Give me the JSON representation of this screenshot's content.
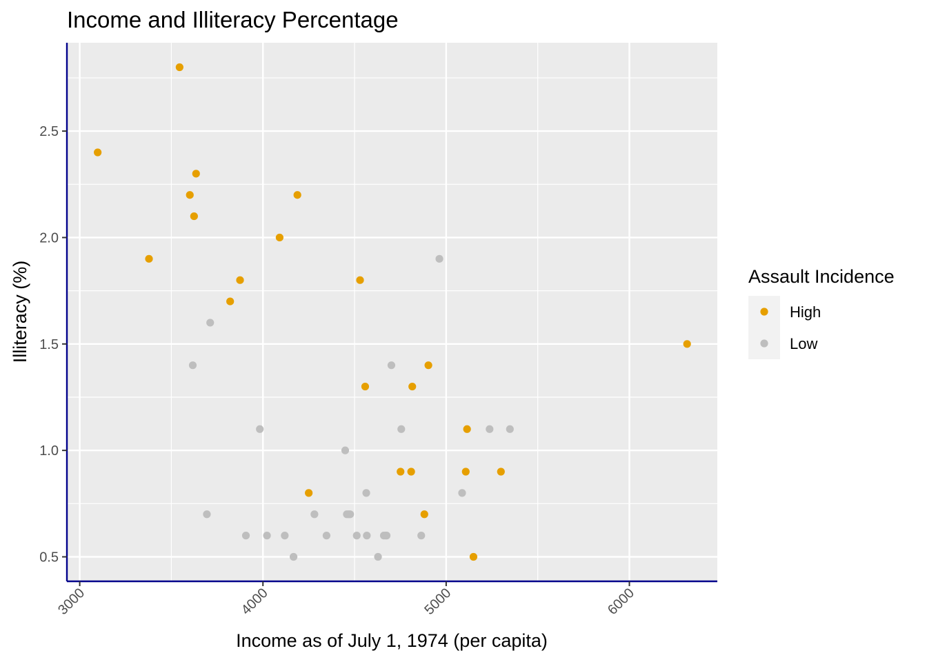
{
  "chart_data": {
    "type": "scatter",
    "title": "Income and Illiteracy Percentage",
    "xlabel": "Income as of July 1, 1974 (per capita)",
    "ylabel": "Illiteracy (%)",
    "xlim": [
      2930,
      6480
    ],
    "ylim": [
      0.385,
      2.915
    ],
    "x_ticks": [
      3000,
      4000,
      5000,
      6000
    ],
    "y_ticks": [
      0.5,
      1.0,
      1.5,
      2.0,
      2.5
    ],
    "y_tick_labels": [
      "0.5",
      "1.0",
      "1.5",
      "2.0",
      "2.5"
    ],
    "grid": true,
    "legend": {
      "title": "Assault Incidence",
      "position": "right"
    },
    "series": [
      {
        "name": "High",
        "color": "#E69F00",
        "points": [
          {
            "x": 3098,
            "y": 2.4
          },
          {
            "x": 3378,
            "y": 1.9
          },
          {
            "x": 3545,
            "y": 2.8
          },
          {
            "x": 3601,
            "y": 2.2
          },
          {
            "x": 3624,
            "y": 2.1
          },
          {
            "x": 3635,
            "y": 2.3
          },
          {
            "x": 3821,
            "y": 1.7
          },
          {
            "x": 3875,
            "y": 1.8
          },
          {
            "x": 4091,
            "y": 2.0
          },
          {
            "x": 4188,
            "y": 2.2
          },
          {
            "x": 4250,
            "y": 0.8
          },
          {
            "x": 4530,
            "y": 1.8
          },
          {
            "x": 4558,
            "y": 1.3
          },
          {
            "x": 4751,
            "y": 0.9
          },
          {
            "x": 4809,
            "y": 0.9
          },
          {
            "x": 4815,
            "y": 1.3
          },
          {
            "x": 4881,
            "y": 0.7
          },
          {
            "x": 4903,
            "y": 1.4
          },
          {
            "x": 5107,
            "y": 0.9
          },
          {
            "x": 5114,
            "y": 1.1
          },
          {
            "x": 5149,
            "y": 0.5
          },
          {
            "x": 5299,
            "y": 0.9
          },
          {
            "x": 6315,
            "y": 1.5
          }
        ]
      },
      {
        "name": "Low",
        "color": "#BEBEBE",
        "points": [
          {
            "x": 3617,
            "y": 1.4
          },
          {
            "x": 3694,
            "y": 0.7
          },
          {
            "x": 3712,
            "y": 1.6
          },
          {
            "x": 3907,
            "y": 0.6
          },
          {
            "x": 3983,
            "y": 1.1
          },
          {
            "x": 4022,
            "y": 0.6
          },
          {
            "x": 4119,
            "y": 0.6
          },
          {
            "x": 4167,
            "y": 0.5
          },
          {
            "x": 4281,
            "y": 0.7
          },
          {
            "x": 4347,
            "y": 0.6
          },
          {
            "x": 4449,
            "y": 1.0
          },
          {
            "x": 4458,
            "y": 0.7
          },
          {
            "x": 4468,
            "y": 0.7
          },
          {
            "x": 4476,
            "y": 0.7
          },
          {
            "x": 4512,
            "y": 0.6
          },
          {
            "x": 4564,
            "y": 0.8
          },
          {
            "x": 4567,
            "y": 0.6
          },
          {
            "x": 4628,
            "y": 0.5
          },
          {
            "x": 4660,
            "y": 0.6
          },
          {
            "x": 4669,
            "y": 0.6
          },
          {
            "x": 4675,
            "y": 0.6
          },
          {
            "x": 4701,
            "y": 1.4
          },
          {
            "x": 4755,
            "y": 1.1
          },
          {
            "x": 4864,
            "y": 0.6
          },
          {
            "x": 4963,
            "y": 1.9
          },
          {
            "x": 5087,
            "y": 0.8
          },
          {
            "x": 5237,
            "y": 1.1
          },
          {
            "x": 5348,
            "y": 1.1
          }
        ]
      }
    ]
  }
}
